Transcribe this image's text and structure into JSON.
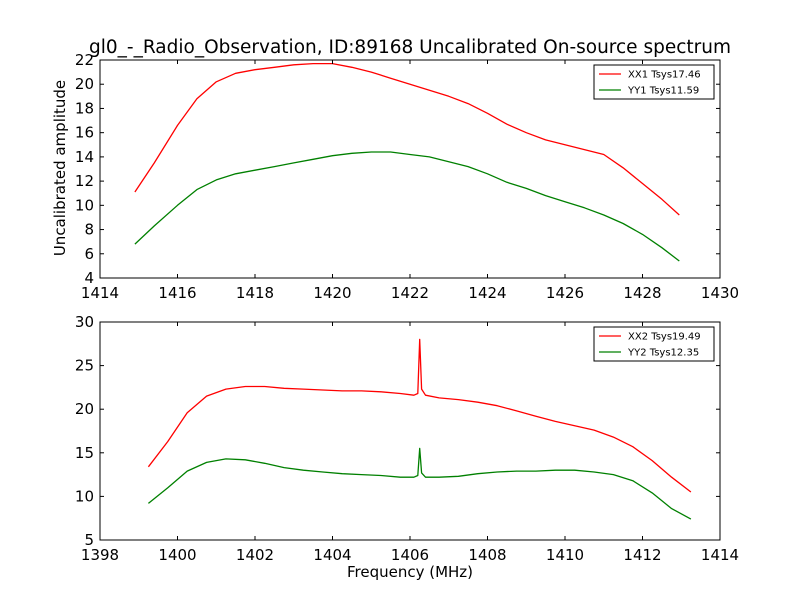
{
  "figure": {
    "title": "gl0_-_Radio_Observation, ID:89168 Uncalibrated On-source spectrum",
    "ylabel": "Uncalibrated amplitude",
    "xlabel": "Frequency (MHz)"
  },
  "colors": {
    "xx": "#ff0000",
    "yy": "#008000",
    "axes": "#000000"
  },
  "chart_data": [
    {
      "type": "line",
      "xlim": [
        1414,
        1430
      ],
      "ylim": [
        4,
        22
      ],
      "xticks": [
        1414,
        1416,
        1418,
        1420,
        1422,
        1424,
        1426,
        1428,
        1430
      ],
      "yticks": [
        4,
        6,
        8,
        10,
        12,
        14,
        16,
        18,
        20,
        22
      ],
      "legend": "top-right",
      "grid": false,
      "series": [
        {
          "name": "XX1 Tsys17.46",
          "color": "#ff0000",
          "x": [
            1414.9,
            1415.4,
            1416.0,
            1416.5,
            1417.0,
            1417.5,
            1418.0,
            1418.5,
            1419.0,
            1419.5,
            1420.0,
            1420.5,
            1421.0,
            1421.5,
            1422.0,
            1422.5,
            1423.0,
            1423.5,
            1424.0,
            1424.5,
            1425.0,
            1425.5,
            1426.0,
            1426.5,
            1427.0,
            1427.5,
            1428.0,
            1428.5,
            1428.95
          ],
          "y": [
            11.1,
            13.5,
            16.6,
            18.8,
            20.2,
            20.9,
            21.2,
            21.4,
            21.6,
            21.7,
            21.7,
            21.4,
            21.0,
            20.5,
            20.0,
            19.5,
            19.0,
            18.4,
            17.6,
            16.7,
            16.0,
            15.4,
            15.0,
            14.6,
            14.2,
            13.1,
            11.8,
            10.5,
            9.2
          ]
        },
        {
          "name": "YY1 Tsys11.59",
          "color": "#008000",
          "x": [
            1414.9,
            1415.4,
            1416.0,
            1416.5,
            1417.0,
            1417.5,
            1418.0,
            1418.5,
            1419.0,
            1419.5,
            1420.0,
            1420.5,
            1421.0,
            1421.5,
            1422.0,
            1422.5,
            1423.0,
            1423.5,
            1424.0,
            1424.5,
            1425.0,
            1425.5,
            1426.0,
            1426.5,
            1427.0,
            1427.5,
            1428.0,
            1428.5,
            1428.95
          ],
          "y": [
            6.8,
            8.3,
            10.0,
            11.3,
            12.1,
            12.6,
            12.9,
            13.2,
            13.5,
            13.8,
            14.1,
            14.3,
            14.4,
            14.4,
            14.2,
            14.0,
            13.6,
            13.2,
            12.6,
            11.9,
            11.4,
            10.8,
            10.3,
            9.8,
            9.2,
            8.5,
            7.6,
            6.5,
            5.4
          ]
        }
      ]
    },
    {
      "type": "line",
      "xlim": [
        1398,
        1414
      ],
      "ylim": [
        5,
        30
      ],
      "xticks": [
        1398,
        1400,
        1402,
        1404,
        1406,
        1408,
        1410,
        1412,
        1414
      ],
      "yticks": [
        5,
        10,
        15,
        20,
        25,
        30
      ],
      "legend": "top-right",
      "grid": false,
      "series": [
        {
          "name": "XX2 Tsys19.49",
          "color": "#ff0000",
          "x": [
            1399.25,
            1399.75,
            1400.25,
            1400.75,
            1401.25,
            1401.75,
            1402.25,
            1402.75,
            1403.25,
            1403.75,
            1404.25,
            1404.75,
            1405.25,
            1405.75,
            1406.1,
            1406.2,
            1406.25,
            1406.3,
            1406.4,
            1406.75,
            1407.25,
            1407.75,
            1408.25,
            1408.75,
            1409.25,
            1409.75,
            1410.25,
            1410.75,
            1411.25,
            1411.75,
            1412.25,
            1412.75,
            1413.25
          ],
          "y": [
            13.4,
            16.3,
            19.6,
            21.5,
            22.3,
            22.6,
            22.6,
            22.4,
            22.3,
            22.2,
            22.1,
            22.1,
            22.0,
            21.8,
            21.6,
            21.8,
            28.0,
            22.3,
            21.6,
            21.3,
            21.1,
            20.8,
            20.4,
            19.8,
            19.2,
            18.6,
            18.1,
            17.6,
            16.8,
            15.7,
            14.1,
            12.2,
            10.5
          ]
        },
        {
          "name": "YY2 Tsys12.35",
          "color": "#008000",
          "x": [
            1399.25,
            1399.75,
            1400.25,
            1400.75,
            1401.25,
            1401.75,
            1402.25,
            1402.75,
            1403.25,
            1403.75,
            1404.25,
            1404.75,
            1405.25,
            1405.75,
            1406.1,
            1406.2,
            1406.25,
            1406.3,
            1406.4,
            1406.75,
            1407.25,
            1407.75,
            1408.25,
            1408.75,
            1409.25,
            1409.75,
            1410.25,
            1410.75,
            1411.25,
            1411.75,
            1412.25,
            1412.75,
            1413.25
          ],
          "y": [
            9.2,
            11.0,
            12.9,
            13.9,
            14.3,
            14.2,
            13.8,
            13.3,
            13.0,
            12.8,
            12.6,
            12.5,
            12.4,
            12.2,
            12.2,
            12.4,
            15.5,
            12.7,
            12.2,
            12.2,
            12.3,
            12.6,
            12.8,
            12.9,
            12.9,
            13.0,
            13.0,
            12.8,
            12.5,
            11.8,
            10.4,
            8.6,
            7.4
          ]
        }
      ]
    }
  ]
}
